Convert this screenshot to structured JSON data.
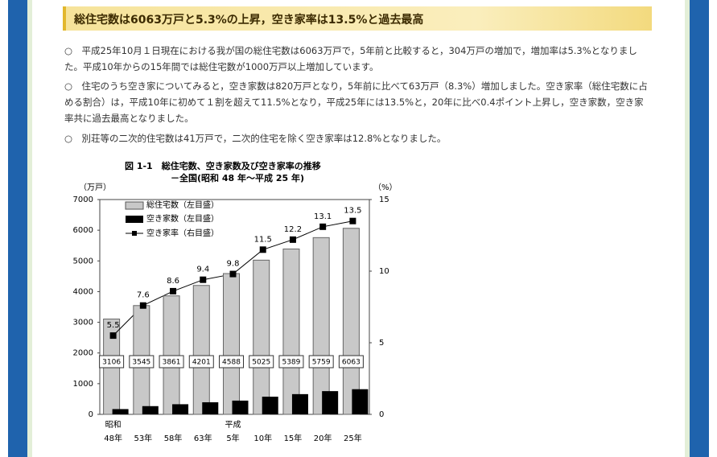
{
  "header": {
    "title": "総住宅数は6063万戸と5.3%の上昇，空き家率は13.5%と過去最高"
  },
  "paragraphs": [
    "○　平成25年10月１日現在における我が国の総住宅数は6063万戸で，5年前と比較すると，304万戸の増加で，増加率は5.3%となりました。平成10年からの15年間では総住宅数が1000万戸以上増加しています。",
    "○　住宅のうち空き家についてみると，空き家数は820万戸となり，5年前に比べて63万戸（8.3%）増加しました。空き家率（総住宅数に占める割合）は，平成10年に初めて１割を超えて11.5%となり，平成25年には13.5%と，20年に比べ0.4ポイント上昇し，空き家数，空き家率共に過去最高となりました。",
    "○　別荘等の二次的住宅数は41万戸で，二次的住宅を除く空き家率は12.8%となりました。"
  ],
  "chart_data": {
    "type": "bar_line",
    "title": "図 1-1　総住宅数、空き家数及び空き家率の推移",
    "subtitle": "－全国(昭和 48 年～平成 25 年)",
    "y_label": "（万戸）",
    "y2_label": "（%）",
    "categories": [
      "48年",
      "53年",
      "58年",
      "63年",
      "5年",
      "10年",
      "15年",
      "20年",
      "25年"
    ],
    "category_eras": [
      "昭和",
      null,
      null,
      null,
      "平成",
      null,
      null,
      null,
      null
    ],
    "series": [
      {
        "name": "総住宅数（左目盛）",
        "color": "#c8c8c8",
        "values": [
          3106,
          3545,
          3861,
          4201,
          4588,
          5025,
          5389,
          5759,
          6063
        ]
      },
      {
        "name": "空き家数（左目盛）",
        "color": "#000000",
        "values": [
          172,
          268,
          330,
          394,
          448,
          576,
          659,
          757,
          820
        ]
      },
      {
        "name": "空き家率（右目盛）",
        "color": "#000000",
        "axis": "y2",
        "values": [
          5.5,
          7.6,
          8.6,
          9.4,
          9.8,
          11.5,
          12.2,
          13.1,
          13.5
        ]
      }
    ],
    "ylim": [
      0,
      7000
    ],
    "yticks": [
      0,
      1000,
      2000,
      3000,
      4000,
      5000,
      6000,
      7000
    ],
    "y2lim": [
      0,
      15
    ],
    "y2ticks": [
      0,
      5,
      10,
      15
    ]
  }
}
